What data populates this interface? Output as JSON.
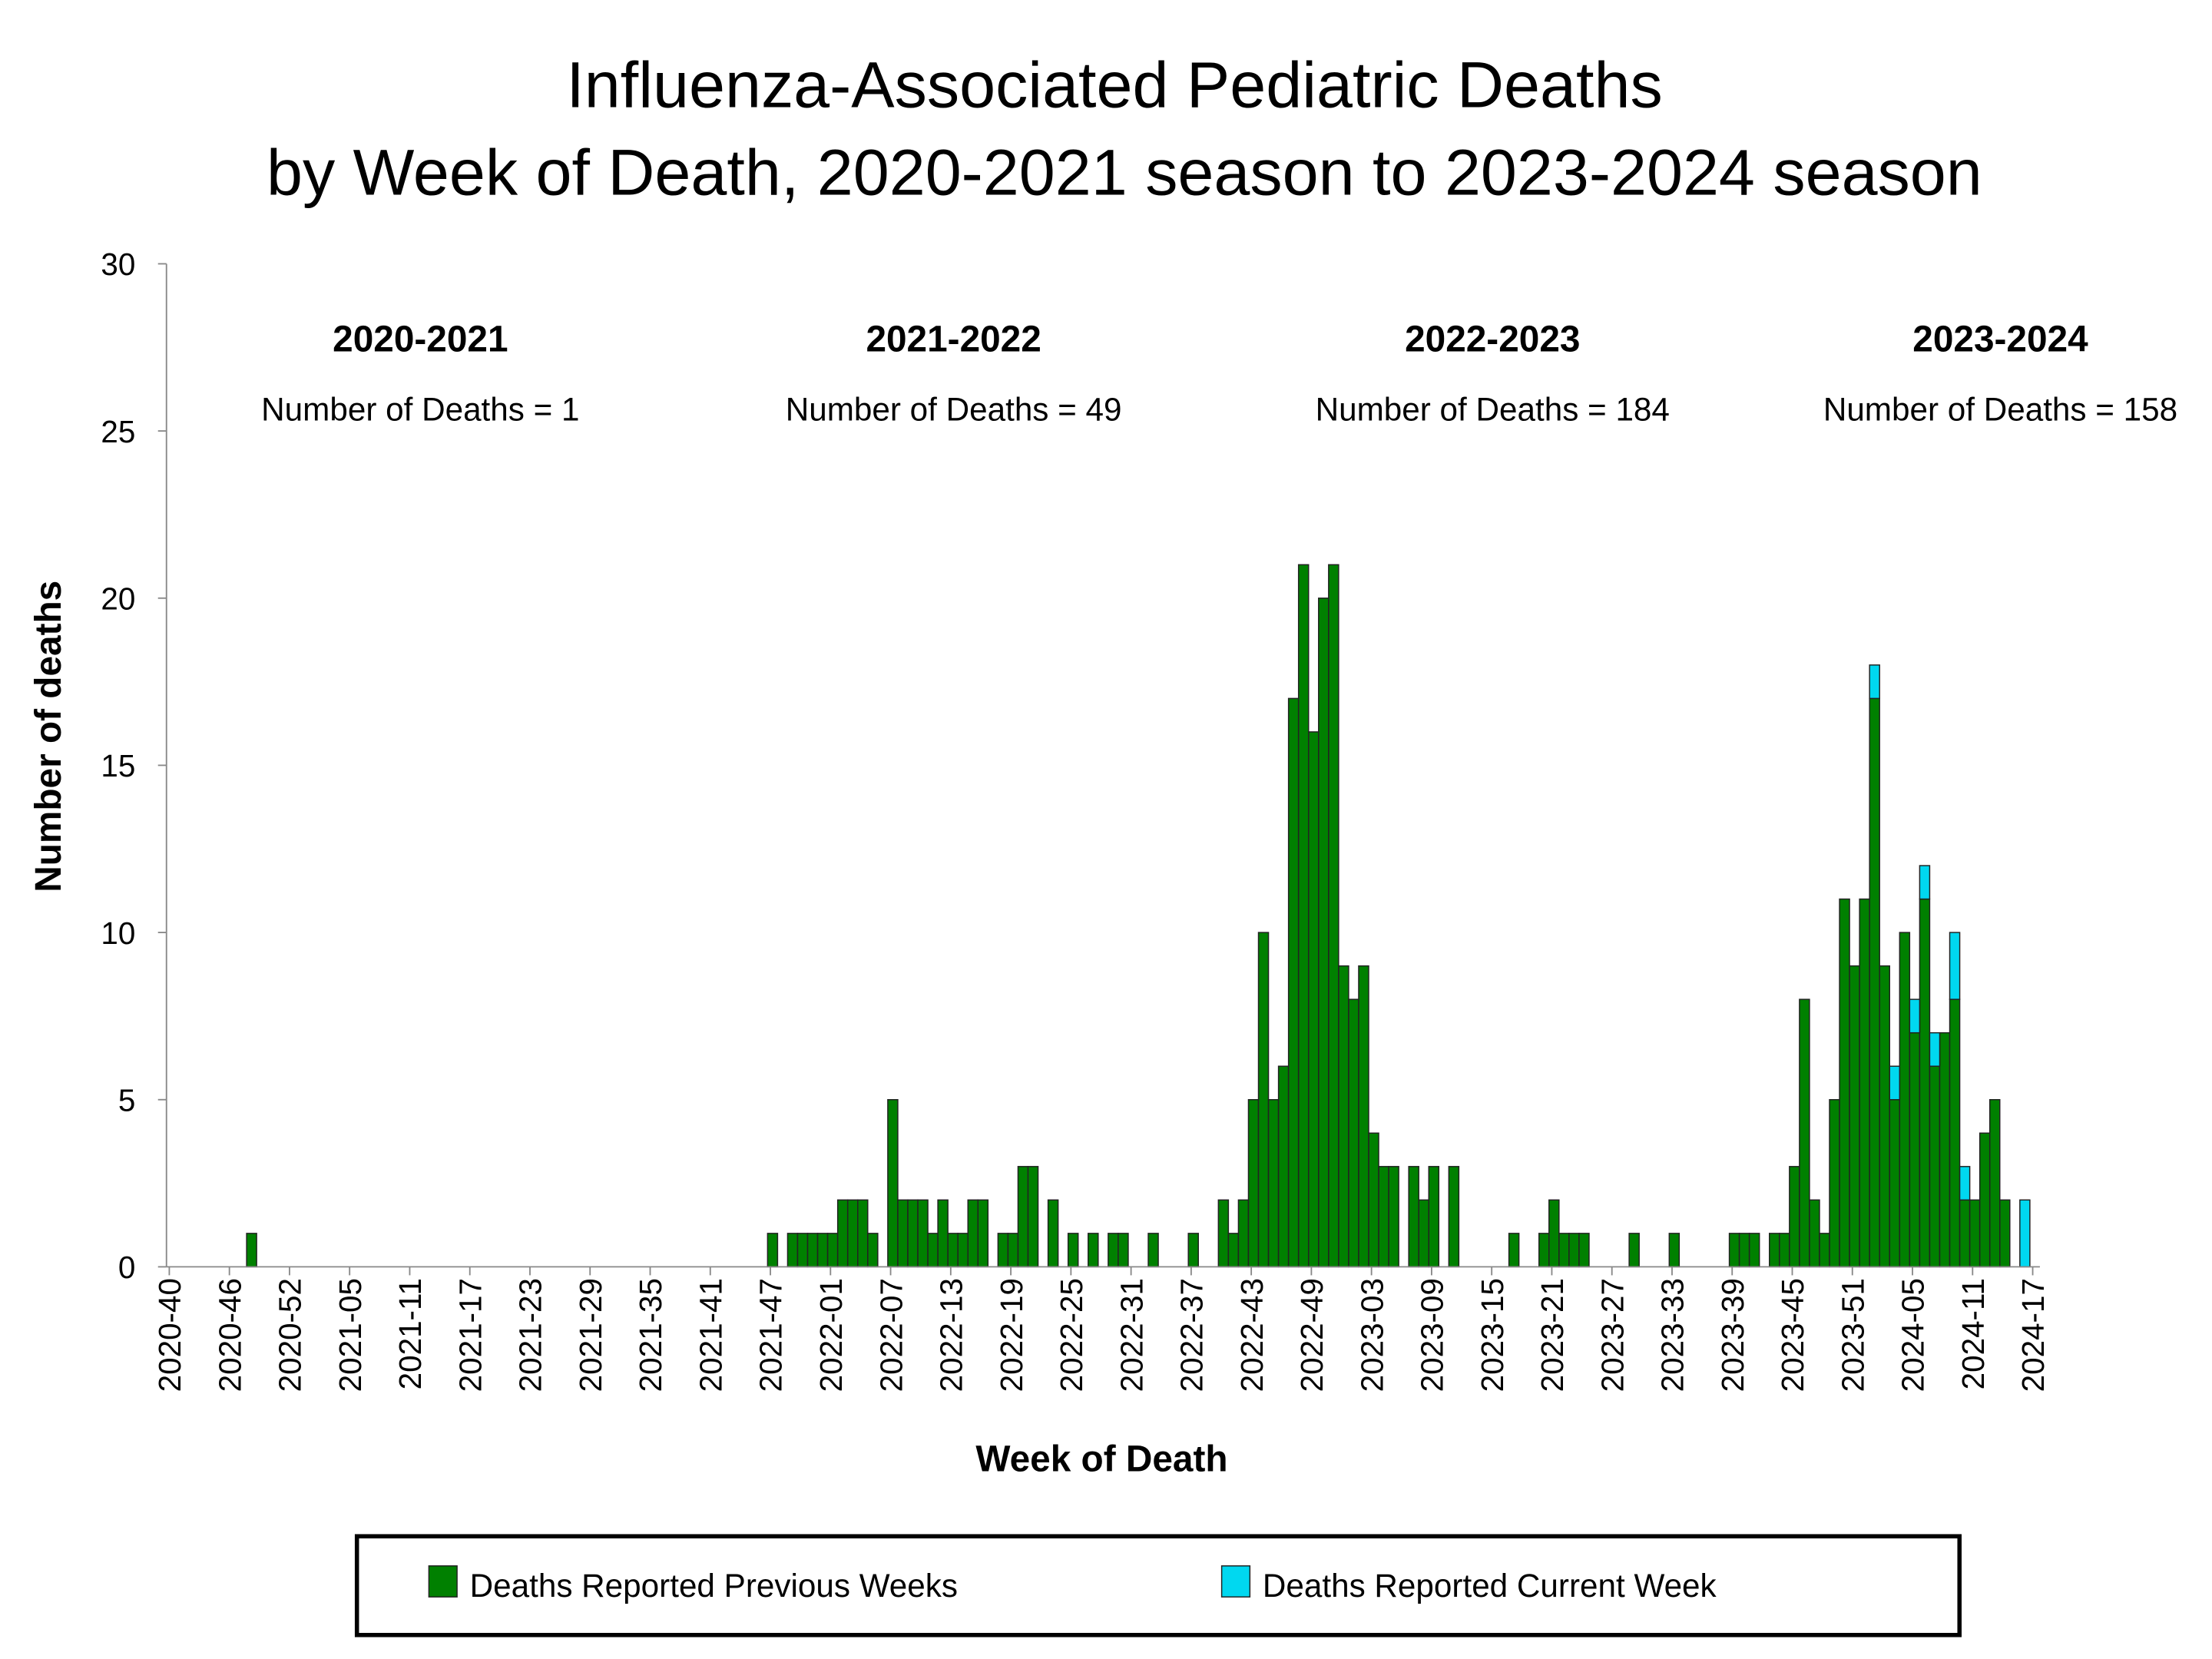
{
  "chart_data": {
    "type": "stacked-bar",
    "title": [
      "Influenza-Associated Pediatric Deaths",
      "by Week of Death, 2020-2021 season to 2023-2024 season"
    ],
    "x_label": "Week of Death",
    "y_label": "Number of deaths",
    "annotations": [
      {
        "title": "2020-2021",
        "text": "Number of Deaths = 1"
      },
      {
        "title": "2021-2022",
        "text": "Number of Deaths = 49"
      },
      {
        "title": "2022-2023",
        "text": "Number of Deaths = 184"
      },
      {
        "title": "2023-2024",
        "text": "Number of Deaths = 158"
      }
    ],
    "ylim": [
      0,
      30
    ],
    "yticks": [
      0,
      5,
      10,
      15,
      20,
      25,
      30
    ],
    "categories": [
      "2020-40",
      null,
      null,
      null,
      null,
      null,
      "2020-46",
      null,
      null,
      null,
      null,
      null,
      "2020-52",
      null,
      null,
      null,
      null,
      null,
      "2021-05",
      null,
      null,
      null,
      null,
      null,
      "2021-11",
      null,
      null,
      null,
      null,
      null,
      "2021-17",
      null,
      null,
      null,
      null,
      null,
      "2021-23",
      null,
      null,
      null,
      null,
      null,
      "2021-29",
      null,
      null,
      null,
      null,
      null,
      "2021-35",
      null,
      null,
      null,
      null,
      null,
      "2021-41",
      null,
      null,
      null,
      null,
      null,
      "2021-47",
      null,
      null,
      null,
      null,
      null,
      "2022-01",
      null,
      null,
      null,
      null,
      null,
      "2022-07",
      null,
      null,
      null,
      null,
      null,
      "2022-13",
      null,
      null,
      null,
      null,
      null,
      "2022-19",
      null,
      null,
      null,
      null,
      null,
      "2022-25",
      null,
      null,
      null,
      null,
      null,
      "2022-31",
      null,
      null,
      null,
      null,
      null,
      "2022-37",
      null,
      null,
      null,
      null,
      null,
      "2022-43",
      null,
      null,
      null,
      null,
      null,
      "2022-49",
      null,
      null,
      null,
      null,
      null,
      "2023-03",
      null,
      null,
      null,
      null,
      null,
      "2023-09",
      null,
      null,
      null,
      null,
      null,
      "2023-15",
      null,
      null,
      null,
      null,
      null,
      "2023-21",
      null,
      null,
      null,
      null,
      null,
      "2023-27",
      null,
      null,
      null,
      null,
      null,
      "2023-33",
      null,
      null,
      null,
      null,
      null,
      "2023-39",
      null,
      null,
      null,
      null,
      null,
      "2023-45",
      null,
      null,
      null,
      null,
      null,
      "2023-51",
      null,
      null,
      null,
      null,
      null,
      "2024-05",
      null,
      null,
      null,
      null,
      null,
      "2024-11",
      null,
      null,
      null,
      null,
      null,
      "2024-17"
    ],
    "series": [
      {
        "name": "Deaths Reported Previous Weeks",
        "color": "#008000",
        "values": [
          0,
          0,
          0,
          0,
          0,
          0,
          0,
          0,
          1,
          0,
          0,
          0,
          0,
          0,
          0,
          0,
          0,
          0,
          0,
          0,
          0,
          0,
          0,
          0,
          0,
          0,
          0,
          0,
          0,
          0,
          0,
          0,
          0,
          0,
          0,
          0,
          0,
          0,
          0,
          0,
          0,
          0,
          0,
          0,
          0,
          0,
          0,
          0,
          0,
          0,
          0,
          0,
          0,
          0,
          0,
          0,
          0,
          0,
          0,
          0,
          1,
          0,
          1,
          1,
          1,
          1,
          1,
          2,
          2,
          2,
          1,
          0,
          5,
          2,
          2,
          2,
          1,
          2,
          1,
          1,
          2,
          2,
          0,
          1,
          1,
          3,
          3,
          0,
          2,
          0,
          1,
          0,
          1,
          0,
          1,
          1,
          0,
          0,
          1,
          0,
          0,
          0,
          1,
          0,
          0,
          2,
          1,
          2,
          5,
          10,
          5,
          6,
          17,
          21,
          16,
          20,
          21,
          9,
          8,
          9,
          4,
          3,
          3,
          0,
          3,
          2,
          3,
          0,
          3,
          0,
          0,
          0,
          0,
          0,
          1,
          0,
          0,
          1,
          2,
          1,
          1,
          1,
          0,
          0,
          0,
          0,
          1,
          0,
          0,
          0,
          1,
          0,
          0,
          0,
          0,
          0,
          1,
          1,
          1,
          0,
          1,
          1,
          3,
          8,
          2,
          1,
          5,
          11,
          9,
          11,
          17,
          9,
          5,
          10,
          7,
          11,
          6,
          7,
          8,
          2,
          2,
          4,
          5,
          2,
          0,
          0,
          0
        ]
      },
      {
        "name": "Deaths Reported Current Week",
        "color": "#00d8f0",
        "values": [
          0,
          0,
          0,
          0,
          0,
          0,
          0,
          0,
          0,
          0,
          0,
          0,
          0,
          0,
          0,
          0,
          0,
          0,
          0,
          0,
          0,
          0,
          0,
          0,
          0,
          0,
          0,
          0,
          0,
          0,
          0,
          0,
          0,
          0,
          0,
          0,
          0,
          0,
          0,
          0,
          0,
          0,
          0,
          0,
          0,
          0,
          0,
          0,
          0,
          0,
          0,
          0,
          0,
          0,
          0,
          0,
          0,
          0,
          0,
          0,
          0,
          0,
          0,
          0,
          0,
          0,
          0,
          0,
          0,
          0,
          0,
          0,
          0,
          0,
          0,
          0,
          0,
          0,
          0,
          0,
          0,
          0,
          0,
          0,
          0,
          0,
          0,
          0,
          0,
          0,
          0,
          0,
          0,
          0,
          0,
          0,
          0,
          0,
          0,
          0,
          0,
          0,
          0,
          0,
          0,
          0,
          0,
          0,
          0,
          0,
          0,
          0,
          0,
          0,
          0,
          0,
          0,
          0,
          0,
          0,
          0,
          0,
          0,
          0,
          0,
          0,
          0,
          0,
          0,
          0,
          0,
          0,
          0,
          0,
          0,
          0,
          0,
          0,
          0,
          0,
          0,
          0,
          0,
          0,
          0,
          0,
          0,
          0,
          0,
          0,
          0,
          0,
          0,
          0,
          0,
          0,
          0,
          0,
          0,
          0,
          0,
          0,
          0,
          0,
          0,
          0,
          0,
          0,
          0,
          0,
          1,
          0,
          1,
          0,
          1,
          1,
          1,
          0,
          2,
          1,
          0,
          0,
          0,
          0,
          0,
          2,
          0
        ]
      }
    ]
  }
}
